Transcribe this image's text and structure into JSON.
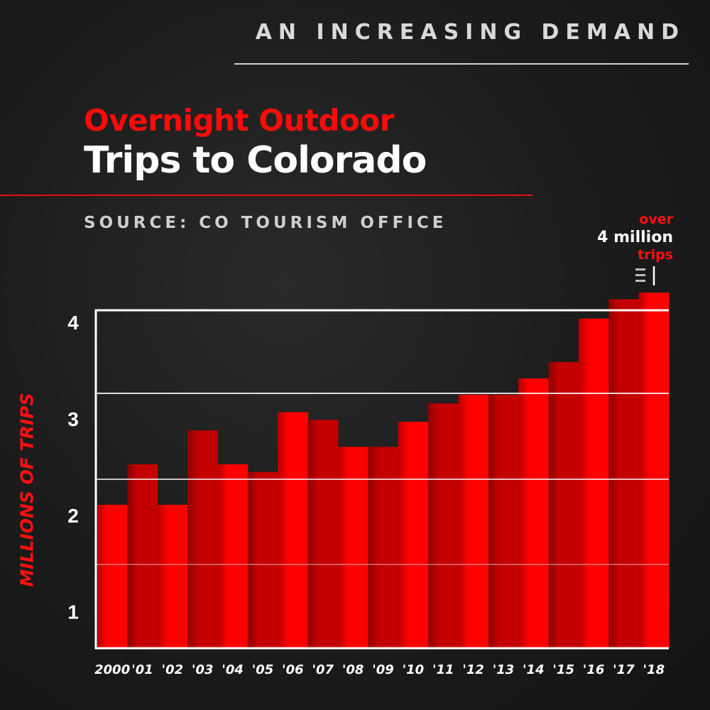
{
  "header": {
    "kicker": "AN INCREASING DEMAND",
    "title_line1": "Overnight Outdoor",
    "title_line2": "Trips to Colorado",
    "source": "SOURCE: CO TOURISM OFFICE"
  },
  "annotation": {
    "line1": "over",
    "line2": "4 million",
    "line3": "trips"
  },
  "colors": {
    "bright": "#ff0000",
    "dark": "#c40000",
    "accent": "#ff1010"
  },
  "chart_data": {
    "type": "bar",
    "title": "Overnight Outdoor Trips to Colorado",
    "xlabel": "",
    "ylabel": "MILLIONS OF TRIPS",
    "categories": [
      "2000",
      "'01",
      "'02",
      "'03",
      "'04",
      "'05",
      "'06",
      "'07",
      "'08",
      "'09",
      "'10",
      "'11",
      "'12",
      "'13",
      "'14",
      "'15",
      "'16",
      "'17",
      "'18"
    ],
    "values": [
      2.11,
      2.53,
      2.11,
      2.88,
      2.53,
      2.45,
      3.07,
      2.99,
      2.71,
      2.71,
      2.97,
      3.16,
      3.25,
      3.25,
      3.42,
      3.59,
      4.04,
      4.24,
      4.31
    ],
    "yticks": [
      "1",
      "2",
      "3",
      "4"
    ],
    "ylim": [
      0.63,
      4.45
    ],
    "grid": true,
    "legend": "none"
  }
}
